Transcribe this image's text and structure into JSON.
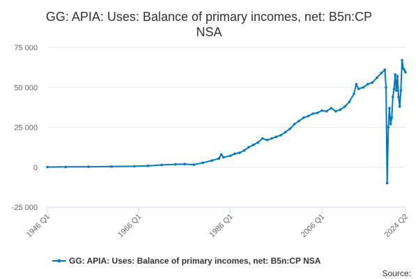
{
  "chart_data": {
    "type": "line",
    "title": "GG: APIA: Uses: Balance of primary incomes, net: B5n:CP NSA",
    "title_lines": [
      "GG: APIA: Uses: Balance of primary incomes, net: B5n:CP",
      "NSA"
    ],
    "xlabel": "",
    "ylabel": "",
    "ylim": [
      -25000,
      75000
    ],
    "y_ticks": [
      -25000,
      0,
      25000,
      50000,
      75000
    ],
    "y_tick_labels": [
      "-25 000",
      "0",
      "25 000",
      "50 000",
      "75 000"
    ],
    "x_range": [
      "1946 Q1",
      "2024 Q2"
    ],
    "x_ticks": [
      "1946 Q1",
      "1966 Q1",
      "1986 Q1",
      "2006 Q1",
      "2024 Q2"
    ],
    "grid": true,
    "legend_position": "bottom",
    "series": [
      {
        "name": "GG: APIA: Uses: Balance of primary incomes, net: B5n:CP NSA",
        "color": "#0077be",
        "points": [
          [
            "1946 Q1",
            100
          ],
          [
            "1950 Q1",
            200
          ],
          [
            "1955 Q1",
            300
          ],
          [
            "1960 Q1",
            400
          ],
          [
            "1965 Q1",
            600
          ],
          [
            "1968 Q1",
            900
          ],
          [
            "1971 Q1",
            1400
          ],
          [
            "1974 Q1",
            1800
          ],
          [
            "1976 Q1",
            2000
          ],
          [
            "1978 Q1",
            1600
          ],
          [
            "1980 Q1",
            2800
          ],
          [
            "1982 Q1",
            4200
          ],
          [
            "1983 Q3",
            5500
          ],
          [
            "1984 Q1",
            8000
          ],
          [
            "1984 Q3",
            6200
          ],
          [
            "1986 Q1",
            7200
          ],
          [
            "1987 Q1",
            8500
          ],
          [
            "1988 Q1",
            9000
          ],
          [
            "1989 Q1",
            10500
          ],
          [
            "1990 Q1",
            12500
          ],
          [
            "1991 Q1",
            14000
          ],
          [
            "1992 Q1",
            15500
          ],
          [
            "1993 Q1",
            18000
          ],
          [
            "1994 Q1",
            17000
          ],
          [
            "1995 Q1",
            18000
          ],
          [
            "1996 Q1",
            19000
          ],
          [
            "1997 Q1",
            20000
          ],
          [
            "1998 Q1",
            22000
          ],
          [
            "1999 Q1",
            24000
          ],
          [
            "2000 Q1",
            27000
          ],
          [
            "2001 Q1",
            29000
          ],
          [
            "2002 Q1",
            31000
          ],
          [
            "2003 Q1",
            32000
          ],
          [
            "2004 Q1",
            33500
          ],
          [
            "2005 Q1",
            34000
          ],
          [
            "2006 Q1",
            35500
          ],
          [
            "2007 Q1",
            35000
          ],
          [
            "2008 Q1",
            37000
          ],
          [
            "2009 Q1",
            35000
          ],
          [
            "2010 Q1",
            36000
          ],
          [
            "2011 Q1",
            38000
          ],
          [
            "2012 Q1",
            41000
          ],
          [
            "2013 Q1",
            46000
          ],
          [
            "2013 Q3",
            52000
          ],
          [
            "2014 Q1",
            49000
          ],
          [
            "2015 Q1",
            50000
          ],
          [
            "2016 Q1",
            52000
          ],
          [
            "2017 Q1",
            53000
          ],
          [
            "2018 Q1",
            56000
          ],
          [
            "2019 Q1",
            59000
          ],
          [
            "2019 Q4",
            61000
          ],
          [
            "2020 Q1",
            50000
          ],
          [
            "2020 Q2",
            -10000
          ],
          [
            "2020 Q3",
            25000
          ],
          [
            "2020 Q4",
            37000
          ],
          [
            "2021 Q1",
            27000
          ],
          [
            "2021 Q2",
            31000
          ],
          [
            "2021 Q3",
            44000
          ],
          [
            "2021 Q4",
            49000
          ],
          [
            "2022 Q1",
            58000
          ],
          [
            "2022 Q2",
            48000
          ],
          [
            "2022 Q3",
            57000
          ],
          [
            "2022 Q4",
            44000
          ],
          [
            "2023 Q1",
            38000
          ],
          [
            "2023 Q2",
            48000
          ],
          [
            "2023 Q3",
            67000
          ],
          [
            "2023 Q4",
            62000
          ],
          [
            "2024 Q1",
            61000
          ],
          [
            "2024 Q2",
            59500
          ]
        ]
      }
    ],
    "legend_label": "GG: APIA: Uses: Balance of primary incomes, net: B5n:CP NSA",
    "source_label": "Source:"
  }
}
